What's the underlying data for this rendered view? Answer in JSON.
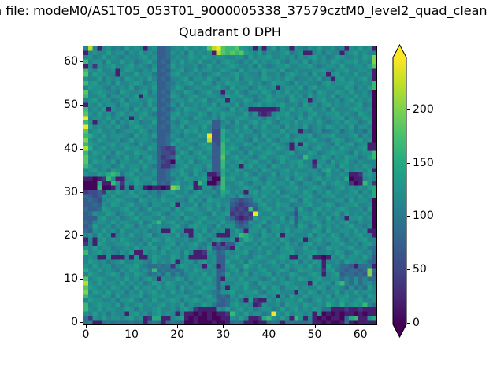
{
  "suptitle": "h file: modeM0/AS1T05_053T01_9000005338_37579cztM0_level2_quad_clean",
  "title": "Quadrant 0 DPH",
  "axes": {
    "x_tick_labels": [
      "0",
      "10",
      "20",
      "30",
      "40",
      "50",
      "60"
    ],
    "x_tick_values": [
      0,
      10,
      20,
      30,
      40,
      50,
      60
    ],
    "y_tick_labels": [
      "0",
      "10",
      "20",
      "30",
      "40",
      "50",
      "60"
    ],
    "y_tick_values": [
      0,
      10,
      20,
      30,
      40,
      50,
      60
    ]
  },
  "colorbar": {
    "tick_labels": [
      "0",
      "50",
      "100",
      "150",
      "200"
    ],
    "tick_values": [
      0,
      50,
      100,
      150,
      200
    ],
    "extend": "both"
  },
  "chart_data": {
    "type": "heatmap",
    "title": "Quadrant 0 DPH",
    "suptitle_visible": "h file: modeM0/AS1T05_053T01_9000005338_37579cztM0_level2_quad_clean",
    "grid_size": [
      64,
      64
    ],
    "x_range": [
      -0.5,
      63.5
    ],
    "y_range": [
      -0.5,
      63.5
    ],
    "vmin": -1.5,
    "vmax": 248.7,
    "colorbar_ticks": [
      0,
      50,
      100,
      150,
      200
    ],
    "colormap": "viridis",
    "colormap_stops": [
      "#440154",
      "#482475",
      "#414487",
      "#355f8d",
      "#2a788e",
      "#21918c",
      "#22a884",
      "#44bf70",
      "#7ad151",
      "#bddf26",
      "#fde725"
    ],
    "cell_value_key": {
      "0": 2,
      "1": 20,
      "2": 38,
      "3": 55,
      "4": 72,
      "5": 88,
      "6": 100,
      "7": 112,
      "8": 124,
      "9": 136,
      "a": 150,
      "b": 165,
      "c": 182,
      "d": 200,
      "e": 222,
      "f": 245
    },
    "rows_top_to_bottom_y63_to_y0": [
      "7e71786769787178445787 97878cefcbbc98718179687187687977867187 9781",
      "1787797886879787445878697878 1ecbcbc987968778967811786877178 97877",
      "78679787687789784457877987987887788697889778786878978679877 8798d",
      "b788697797867897454879787977868987687978789768879687879878 89787d",
      "1728789778978768445978778679787898778697678897788976788797 78879c",
      "b87977817987687945478967978877987697887988796787778897688 9778871",
      "c79887718779788644589778786789778978776977868987869781897 8797781",
      "8779687869878797454778968879768879688779878798677879671897 878971",
      "b897786977898678445687897798687988779786798876978776897888 97787b",
      "798876878796787944579867887789769788679878178879689778877 986879b",
      "c789877698778968454877986789771879768879868797877869877987 977860",
      "b778968878791877445986789778876988977687978879786978879688 797870",
      "7897886796887798454788797896788187798678987769878178977868 978780",
      "1879788689778697445869778787968879687897878977869786897878 789670",
      "b787918778697879454687988779887697871111112879788977869777 898780",
      "c879786897878976445897877986879887796821278897786897788978 769870",
      "f788797868179788454978769877869778987786879788697978678896 877980",
      "b817879687986779445768977889447869778978976887978879767879 886790",
      "f978787976898787454879688797448678796879788697879678798787 968870",
      "c789778678879867444787989787 33a87978867887797881657856785786 7580",
      "ba87978887697879445876 87798f33a7879778697887967889678897778 96870",
      "d879877867978876445798788 77e33a9788769779768879878977689867 89780",
      "b98778978876977844597887689843b7877986887987618197788769789 67811",
      "ea78978779887698432387797789 44b898677897879871788689778798778911",
      "b798786987798877433279868978 44b977869778987789677986789887 69788b",
      "c887967879786897423497887897 44c789787689778987 76b87798687988679b",
      "c798879688779788432088796788 44b878978977867978897718869789768777",
      "b977886797887976422478978879 44b787189788698778798729788698787987",
      "7897869877896878445789779868 44a879877869877897877886 9a7869788791",
      "87798aba68978778445879869781 13a78879768779688798878769778 7112897",
      "11012b811789788744568798789300b8977889768877968976897878 7a011787",
      "000a11b82879877945489778 1b8003b77897688797887976887697898 7201b82",
      "000b001717187101101dc789128857b877898769897788977898767897 87879a",
      "2334287987978867578977868977 86a9787189788796788798687978778 9687a",
      "5434879778897687687798789788 679786977879787897688976889778 87978a",
      "4543788987769878798877697869 887754345897878779869878677886978870",
      "4454879878977868877918779688 7978432345897798867789778986788 97780",
      "5445987789786797788697898779 78683232b478978788497689787898778690",
      "4587798678978778976889778876 978923232f87798876388796878969787870",
      "4448977867897887797786987897 78864212397887796847988779687188 9780",
      "5478879788779679b789787689788797743487896878794877986887897 68770",
      "4597786879868797877897689887 69788545789678978759867978787897 7680",
      "5487978697787867811977118796 878179718879688797887798697788 797811",
      "7869781787977896788796718978 711178ba8769879188777968879868789771",
      "1718978798776879879877867986 8977817a978878798678178978897687 8977",
      "2719877889878697778968789768 1414489778698787978689787688977 86897",
      "8797886778797889689787788679 434319788797786898779786798878977865",
      "b789787687911878797886971128 745878896787977889678897787986798785",
      "7871181117181179877986811117 844789776898778981187911018797887974",
      "7987867897788769787917886897 844977869877897878968798177869878754",
      "8797886778897655656279878718 7148977a87977886978879781977554 15561",
      "a87978768798786b565656879877 844789687789778986798877289654554 5d5",
      "7987789868798756758575788797 845978796878968779877898178945545 4d4",
      "c789877879786897187798687889 741887978876797868798789778857585755",
      "e879788797878679879877868978 748778897698877898777197886 9b7585786",
      "c987879878697887978869787798 847188797769798688978779868875857597",
      "d798797886879789787978678987 658897788976889777187986877968797887",
      "b877986977889678897788977689 745487978789781869779788796889778698",
      "7988778688976879778986889878 854578619211879788797689788798789778",
      "b789887968789787897879687798 644589787128778698879878 7a87a7898b75",
      "b879788779868778977868972111 187978978678867978978798551112112111",
      "8797868771897868978717110101 0112b87978867f87978878180101011 01011",
      "528797887897812aa11789101001 00118797112ab8797 1b81710101105ab118a",
      "6711565655656156515655001000 100156511011565156555611010015101111"
    ]
  }
}
